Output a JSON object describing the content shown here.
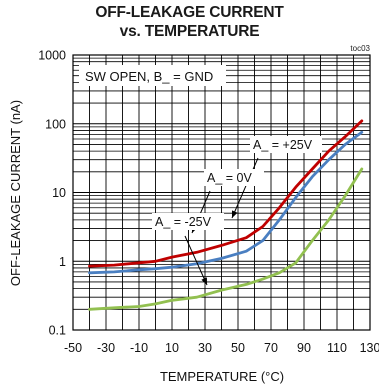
{
  "chart_data": {
    "type": "line",
    "title": "OFF-LEAKAGE CURRENT",
    "subtitle": "vs. TEMPERATURE",
    "code": "toc03",
    "xlabel": "TEMPERATURE (°C)",
    "ylabel": "OFF-LEAKAGE CURRENT (nA)",
    "xlim": [
      -50,
      130
    ],
    "ylim": [
      0.1,
      1000
    ],
    "yscale": "log",
    "grid": true,
    "x_ticks": [
      "-50",
      "-30",
      "-10",
      "10",
      "30",
      "50",
      "70",
      "90",
      "110",
      "130"
    ],
    "y_ticks": [
      "0.1",
      "1",
      "10",
      "100",
      "1000"
    ],
    "condition_label": "SW OPEN, B_ = GND",
    "series": [
      {
        "name": "A_ = +25V",
        "color": "#c00000",
        "x": [
          -40,
          -25,
          -10,
          0,
          10,
          25,
          40,
          55,
          65,
          75,
          85,
          95,
          105,
          115,
          125
        ],
        "y": [
          0.85,
          0.88,
          0.95,
          1.0,
          1.15,
          1.35,
          1.7,
          2.2,
          3.2,
          6,
          12,
          22,
          40,
          65,
          110
        ]
      },
      {
        "name": "A_ = 0V",
        "color": "#4a7fc1",
        "x": [
          -40,
          -25,
          -10,
          0,
          10,
          25,
          40,
          55,
          65,
          75,
          85,
          95,
          105,
          115,
          125
        ],
        "y": [
          0.68,
          0.7,
          0.75,
          0.78,
          0.82,
          0.92,
          1.1,
          1.4,
          2.0,
          4.0,
          8.5,
          17,
          30,
          50,
          75
        ]
      },
      {
        "name": "A_ = -25V",
        "color": "#92c050",
        "x": [
          -40,
          -25,
          -10,
          0,
          10,
          25,
          40,
          55,
          65,
          75,
          85,
          95,
          105,
          115,
          125
        ],
        "y": [
          0.2,
          0.21,
          0.22,
          0.24,
          0.27,
          0.3,
          0.38,
          0.46,
          0.55,
          0.68,
          0.95,
          2.0,
          4.0,
          9.0,
          22
        ]
      }
    ]
  }
}
